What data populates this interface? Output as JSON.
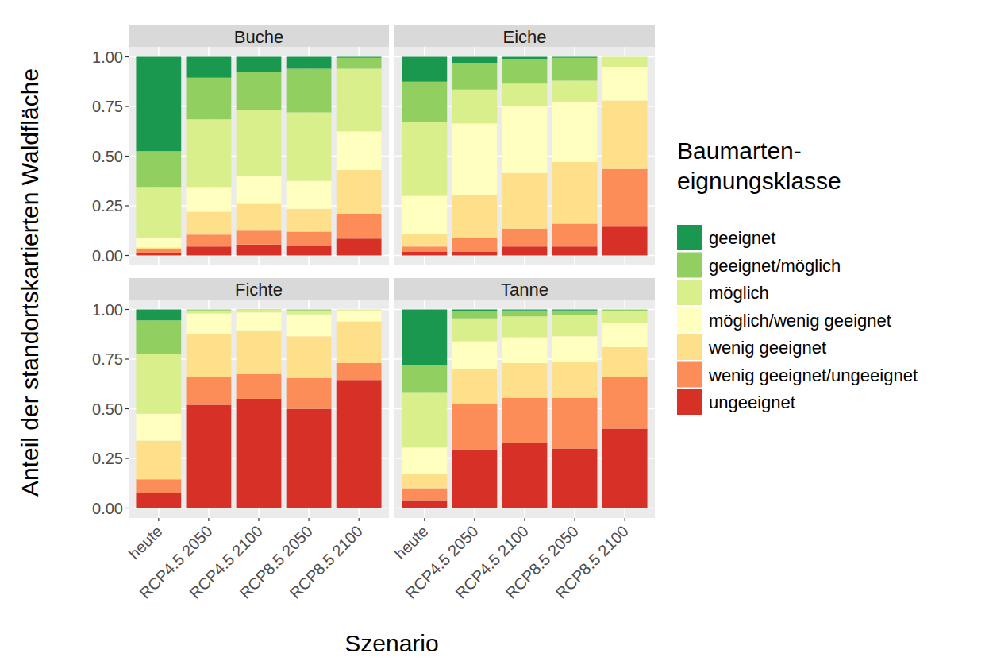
{
  "chart_data": [
    {
      "type": "bar",
      "title": "Buche",
      "stacked": true,
      "grid": true,
      "tick_labels": "y",
      "y_label": "Anteil der standortskartierten Waldfläche",
      "x_label": "Szenario",
      "legend_title": "Baumarten-\neignungsklasse",
      "categories": [
        "heute",
        "RCP4.5 2050",
        "RCP4.5 2100",
        "RCP8.5 2050",
        "RCP8.5 2100"
      ],
      "ylim": [
        -0.05,
        1.05
      ],
      "yticks": [
        {
          "value": 0,
          "label": "0.00"
        },
        {
          "value": 0.25,
          "label": "0.25"
        },
        {
          "value": 0.5,
          "label": "0.50"
        },
        {
          "value": 0.75,
          "label": "0.75"
        },
        {
          "value": 1,
          "label": "1.00"
        }
      ],
      "series": [
        {
          "name": "geeignet",
          "color": "#1a9850",
          "values": [
            0.475,
            0.105,
            0.075,
            0.06,
            0.005
          ]
        },
        {
          "name": "geeignet/möglich",
          "color": "#91cf60",
          "values": [
            0.18,
            0.21,
            0.195,
            0.22,
            0.055
          ]
        },
        {
          "name": "möglich",
          "color": "#d9ef8b",
          "values": [
            0.255,
            0.34,
            0.33,
            0.345,
            0.315
          ]
        },
        {
          "name": "möglich/wenig geeignet",
          "color": "#ffffbf",
          "values": [
            0.05,
            0.125,
            0.14,
            0.14,
            0.195
          ]
        },
        {
          "name": "wenig geeignet",
          "color": "#fee08b",
          "values": [
            0.01,
            0.115,
            0.135,
            0.115,
            0.22
          ]
        },
        {
          "name": "wenig geeignet/ungeeignet",
          "color": "#fc8d59",
          "values": [
            0.02,
            0.06,
            0.07,
            0.07,
            0.125
          ]
        },
        {
          "name": "ungeeignet",
          "color": "#d73027",
          "values": [
            0.01,
            0.045,
            0.055,
            0.05,
            0.085
          ]
        }
      ]
    },
    {
      "type": "bar",
      "title": "Eiche",
      "stacked": true,
      "grid": true,
      "tick_labels": false,
      "categories": [
        "heute",
        "RCP4.5 2050",
        "RCP4.5 2100",
        "RCP8.5 2050",
        "RCP8.5 2100"
      ],
      "ylim": [
        -0.05,
        1.05
      ],
      "yticks": [
        {
          "value": 0,
          "label": "0.00"
        },
        {
          "value": 0.25,
          "label": "0.25"
        },
        {
          "value": 0.5,
          "label": "0.50"
        },
        {
          "value": 0.75,
          "label": "0.75"
        },
        {
          "value": 1,
          "label": "1.00"
        }
      ],
      "series": [
        {
          "name": "geeignet",
          "color": "#1a9850",
          "values": [
            0.125,
            0.03,
            0.01,
            0.005,
            0
          ]
        },
        {
          "name": "geeignet/möglich",
          "color": "#91cf60",
          "values": [
            0.205,
            0.135,
            0.125,
            0.115,
            0
          ]
        },
        {
          "name": "möglich",
          "color": "#d9ef8b",
          "values": [
            0.37,
            0.17,
            0.115,
            0.11,
            0.05
          ]
        },
        {
          "name": "möglich/wenig geeignet",
          "color": "#ffffbf",
          "values": [
            0.19,
            0.36,
            0.335,
            0.3,
            0.17
          ]
        },
        {
          "name": "wenig geeignet",
          "color": "#fee08b",
          "values": [
            0.065,
            0.215,
            0.28,
            0.31,
            0.345
          ]
        },
        {
          "name": "wenig geeignet/ungeeignet",
          "color": "#fc8d59",
          "values": [
            0.025,
            0.07,
            0.09,
            0.115,
            0.29
          ]
        },
        {
          "name": "ungeeignet",
          "color": "#d73027",
          "values": [
            0.02,
            0.02,
            0.045,
            0.045,
            0.145
          ]
        }
      ]
    },
    {
      "type": "bar",
      "title": "Fichte",
      "stacked": true,
      "grid": true,
      "tick_labels": true,
      "categories": [
        "heute",
        "RCP4.5 2050",
        "RCP4.5 2100",
        "RCP8.5 2050",
        "RCP8.5 2100"
      ],
      "ylim": [
        -0.05,
        1.05
      ],
      "yticks": [
        {
          "value": 0,
          "label": "0.00"
        },
        {
          "value": 0.25,
          "label": "0.25"
        },
        {
          "value": 0.5,
          "label": "0.50"
        },
        {
          "value": 0.75,
          "label": "0.75"
        },
        {
          "value": 1,
          "label": "1.00"
        }
      ],
      "series": [
        {
          "name": "geeignet",
          "color": "#1a9850",
          "values": [
            0.055,
            0,
            0,
            0,
            0
          ]
        },
        {
          "name": "geeignet/möglich",
          "color": "#91cf60",
          "values": [
            0.17,
            0.005,
            0.002,
            0.005,
            0
          ]
        },
        {
          "name": "möglich",
          "color": "#d9ef8b",
          "values": [
            0.3,
            0.015,
            0.013,
            0.02,
            0.005
          ]
        },
        {
          "name": "möglich/wenig geeignet",
          "color": "#ffffbf",
          "values": [
            0.135,
            0.105,
            0.09,
            0.11,
            0.055
          ]
        },
        {
          "name": "wenig geeignet",
          "color": "#fee08b",
          "values": [
            0.195,
            0.215,
            0.22,
            0.21,
            0.21
          ]
        },
        {
          "name": "wenig geeignet/ungeeignet",
          "color": "#fc8d59",
          "values": [
            0.07,
            0.14,
            0.125,
            0.155,
            0.085
          ]
        },
        {
          "name": "ungeeignet",
          "color": "#d73027",
          "values": [
            0.075,
            0.52,
            0.55,
            0.5,
            0.645
          ]
        }
      ]
    },
    {
      "type": "bar",
      "title": "Tanne",
      "stacked": true,
      "grid": true,
      "tick_labels": "x",
      "categories": [
        "heute",
        "RCP4.5 2050",
        "RCP4.5 2100",
        "RCP8.5 2050",
        "RCP8.5 2100"
      ],
      "ylim": [
        -0.05,
        1.05
      ],
      "yticks": [
        {
          "value": 0,
          "label": "0.00"
        },
        {
          "value": 0.25,
          "label": "0.25"
        },
        {
          "value": 0.5,
          "label": "0.50"
        },
        {
          "value": 0.75,
          "label": "0.75"
        },
        {
          "value": 1,
          "label": "1.00"
        }
      ],
      "series": [
        {
          "name": "geeignet",
          "color": "#1a9850",
          "values": [
            0.28,
            0.01,
            0.005,
            0.005,
            0
          ]
        },
        {
          "name": "geeignet/möglich",
          "color": "#91cf60",
          "values": [
            0.14,
            0.035,
            0.03,
            0.025,
            0.01
          ]
        },
        {
          "name": "möglich",
          "color": "#d9ef8b",
          "values": [
            0.275,
            0.115,
            0.105,
            0.105,
            0.06
          ]
        },
        {
          "name": "möglich/wenig geeignet",
          "color": "#ffffbf",
          "values": [
            0.135,
            0.14,
            0.13,
            0.13,
            0.12
          ]
        },
        {
          "name": "wenig geeignet",
          "color": "#fee08b",
          "values": [
            0.07,
            0.175,
            0.175,
            0.18,
            0.15
          ]
        },
        {
          "name": "wenig geeignet/ungeeignet",
          "color": "#fc8d59",
          "values": [
            0.06,
            0.23,
            0.225,
            0.255,
            0.26
          ]
        },
        {
          "name": "ungeeignet",
          "color": "#d73027",
          "values": [
            0.04,
            0.295,
            0.33,
            0.3,
            0.4
          ]
        }
      ]
    }
  ]
}
